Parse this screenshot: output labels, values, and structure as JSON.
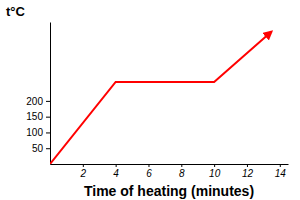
{
  "chart_data": {
    "type": "line",
    "y_label": "t°C",
    "x_label": "Time of heating (minutes)",
    "x": [
      0,
      4,
      10,
      13.5
    ],
    "values": [
      0,
      260,
      260,
      420
    ],
    "color": "#ff0000",
    "marker": "arrow",
    "xlim": [
      0,
      14.5
    ],
    "xticks": [
      2,
      4,
      6,
      8,
      10,
      12,
      14
    ],
    "ylim": [
      0,
      450
    ],
    "yticks": [
      50,
      100,
      150,
      200
    ],
    "grid": false
  }
}
